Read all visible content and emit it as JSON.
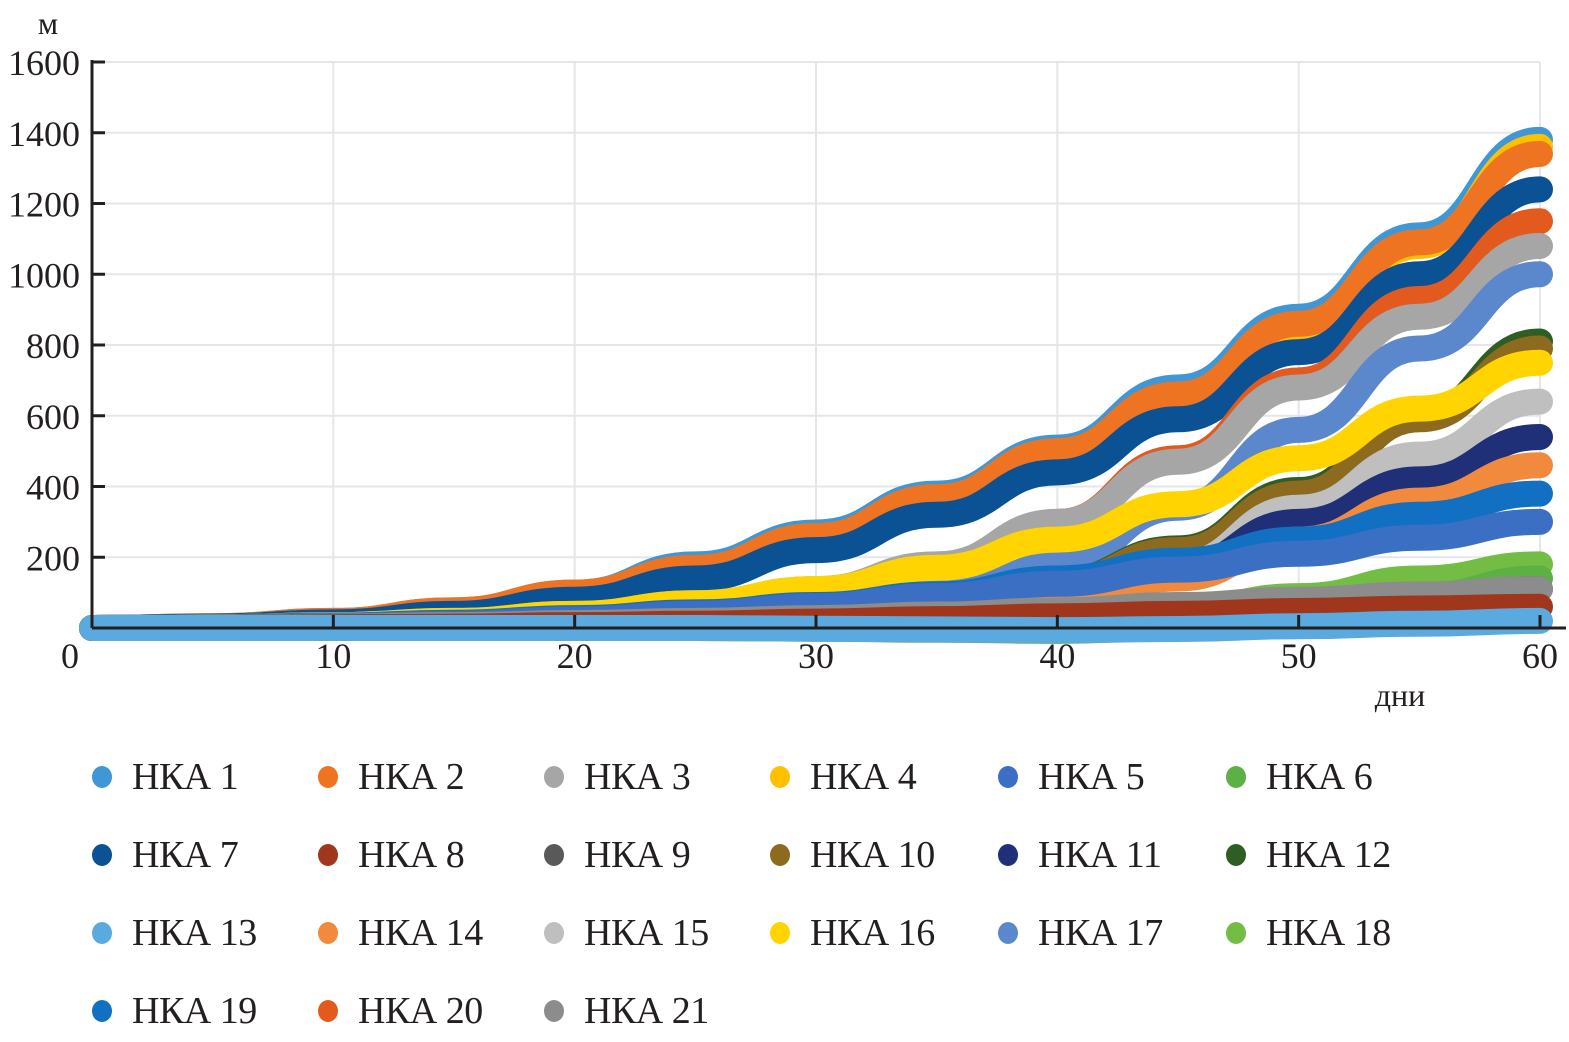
{
  "chart_data": {
    "type": "line",
    "title": "",
    "xlabel": "дни",
    "ylabel": "м",
    "xlim": [
      0,
      60
    ],
    "ylim": [
      0,
      1600
    ],
    "xticks": [
      0,
      10,
      20,
      30,
      40,
      50,
      60
    ],
    "yticks": [
      200,
      400,
      600,
      800,
      1000,
      1200,
      1400,
      1600
    ],
    "xtick_labels": [
      "0",
      "10",
      "20",
      "30",
      "40",
      "50",
      "60"
    ],
    "ytick_labels": [
      "200",
      "400",
      "600",
      "800",
      "1000",
      "1200",
      "1400",
      "1600"
    ],
    "grid": true,
    "legend_position": "bottom",
    "x": [
      0,
      5,
      10,
      15,
      20,
      25,
      30,
      35,
      40,
      45,
      50,
      55,
      60
    ],
    "series": [
      {
        "name": "НКА 1",
        "color": "#3f97d6",
        "values": [
          0,
          5,
          20,
          50,
          100,
          180,
          270,
          380,
          510,
          680,
          880,
          1110,
          1380
        ]
      },
      {
        "name": "НКА 2",
        "color": "#ee7422",
        "values": [
          0,
          5,
          20,
          50,
          100,
          170,
          260,
          370,
          500,
          660,
          860,
          1090,
          1340
        ]
      },
      {
        "name": "НКА 3",
        "color": "#a6a6a6",
        "values": [
          0,
          2,
          8,
          20,
          40,
          70,
          110,
          180,
          300,
          470,
          680,
          880,
          1080
        ]
      },
      {
        "name": "НКА 4",
        "color": "#ffc000",
        "values": [
          0,
          5,
          19,
          48,
          95,
          165,
          250,
          360,
          490,
          650,
          850,
          1080,
          1360
        ]
      },
      {
        "name": "НКА 5",
        "color": "#3a6fc4",
        "values": [
          0,
          1,
          5,
          12,
          24,
          40,
          62,
          90,
          125,
          165,
          210,
          255,
          300
        ]
      },
      {
        "name": "НКА 6",
        "color": "#5cb044",
        "values": [
          0,
          0,
          0,
          0,
          0,
          0,
          -2,
          -5,
          -8,
          0,
          40,
          90,
          140
        ]
      },
      {
        "name": "НКА 7",
        "color": "#0a5294",
        "values": [
          0,
          4,
          16,
          40,
          80,
          140,
          220,
          320,
          440,
          590,
          780,
          1000,
          1240
        ]
      },
      {
        "name": "НКА 8",
        "color": "#a0361c",
        "values": [
          0,
          0,
          2,
          4,
          8,
          12,
          18,
          25,
          33,
          40,
          48,
          55,
          60
        ]
      },
      {
        "name": "НКА 9",
        "color": "#595959",
        "values": [
          0,
          1,
          3,
          6,
          10,
          15,
          22,
          30,
          40,
          55,
          70,
          90,
          110
        ]
      },
      {
        "name": "НКА 10",
        "color": "#8c6a1e",
        "values": [
          0,
          1,
          4,
          10,
          20,
          35,
          55,
          85,
          130,
          220,
          380,
          590,
          790
        ]
      },
      {
        "name": "НКА 11",
        "color": "#1f2f78",
        "values": [
          0,
          1,
          3,
          8,
          16,
          28,
          44,
          66,
          100,
          170,
          300,
          420,
          540
        ]
      },
      {
        "name": "НКА 12",
        "color": "#2e5e24",
        "values": [
          0,
          1,
          4,
          10,
          20,
          35,
          56,
          86,
          132,
          225,
          390,
          600,
          810
        ]
      },
      {
        "name": "НКА 13",
        "color": "#5aaae0",
        "values": [
          0,
          0,
          0,
          0,
          0,
          0,
          -2,
          -4,
          -6,
          -3,
          5,
          12,
          20
        ]
      },
      {
        "name": "НКА 14",
        "color": "#f28a3e",
        "values": [
          0,
          1,
          3,
          7,
          14,
          24,
          38,
          56,
          80,
          140,
          250,
          360,
          460
        ]
      },
      {
        "name": "НКА 15",
        "color": "#bfbfbf",
        "values": [
          0,
          1,
          3,
          8,
          16,
          28,
          45,
          68,
          100,
          180,
          340,
          490,
          640
        ]
      },
      {
        "name": "НКА 16",
        "color": "#ffd400",
        "values": [
          0,
          2,
          8,
          20,
          40,
          70,
          110,
          170,
          250,
          350,
          480,
          620,
          750
        ]
      },
      {
        "name": "НКА 17",
        "color": "#5b87cc",
        "values": [
          0,
          1,
          4,
          10,
          22,
          40,
          65,
          100,
          180,
          340,
          560,
          790,
          1000
        ]
      },
      {
        "name": "НКА 18",
        "color": "#74bd45",
        "values": [
          0,
          0,
          1,
          2,
          4,
          7,
          12,
          20,
          30,
          50,
          90,
          140,
          180
        ]
      },
      {
        "name": "НКА 19",
        "color": "#1170c2",
        "values": [
          0,
          2,
          7,
          15,
          28,
          44,
          65,
          95,
          140,
          190,
          250,
          320,
          380
        ]
      },
      {
        "name": "НКА 20",
        "color": "#e35a1e",
        "values": [
          0,
          1,
          3,
          8,
          18,
          35,
          70,
          150,
          300,
          480,
          700,
          930,
          1150
        ]
      },
      {
        "name": "НКА 21",
        "color": "#8c8c8c",
        "values": [
          0,
          1,
          4,
          8,
          14,
          20,
          28,
          38,
          50,
          65,
          80,
          95,
          110
        ]
      }
    ]
  }
}
